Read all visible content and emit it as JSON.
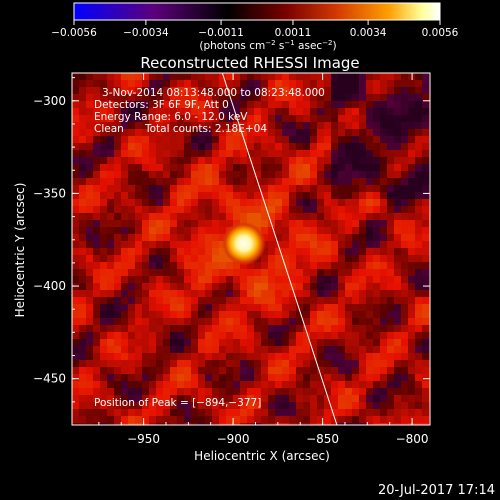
{
  "colorbar": {
    "ticks": [
      "−0.0056",
      "−0.0034",
      "−0.0011",
      "0.0011",
      "0.0034",
      "0.0056"
    ],
    "values": [
      -0.0056,
      -0.0034,
      -0.0011,
      0.0011,
      0.0034,
      0.0056
    ],
    "unit_prefix": "(photons cm",
    "unit_sup1": "−2",
    "unit_mid": " s",
    "unit_sup2": "−1",
    "unit_mid2": " asec",
    "unit_sup3": "−2",
    "unit_suffix": ")",
    "colors": [
      "#0000ff",
      "#5c007a",
      "#000000",
      "#7a0000",
      "#d43a00",
      "#ff9f00",
      "#ffff9a",
      "#ffffff"
    ]
  },
  "chart_data": {
    "type": "heatmap",
    "title": "Reconstructed RHESSI Image",
    "xlabel": "Heliocentric X (arcsec)",
    "ylabel": "Heliocentric Y (arcsec)",
    "xlim": [
      -990,
      -790
    ],
    "ylim": [
      -475,
      -285
    ],
    "xticks": [
      -950,
      -900,
      -850,
      -800
    ],
    "xtick_labels": [
      "−950",
      "−900",
      "−850",
      "−800"
    ],
    "yticks": [
      -300,
      -350,
      -400,
      -450
    ],
    "ytick_labels": [
      "−300",
      "−350",
      "−400",
      "−450"
    ],
    "peak": {
      "x": -894,
      "y": -377
    },
    "limb_line": [
      [
        -906,
        -285
      ],
      [
        -842,
        -475
      ]
    ],
    "annotations": {
      "time_range": "3-Nov-2014 08:13:48.000 to 08:23:48.000",
      "detectors": "Detectors: 3F 6F 9F, Att 0",
      "energy": "Energy Range: 6.0 - 12.0 keV",
      "clean": "Clean",
      "counts": "Total counts: 2.18E+04",
      "peak_label": "Position of Peak = [−894,−377]"
    }
  },
  "footer": {
    "timestamp": "20-Jul-2017 17:14"
  }
}
